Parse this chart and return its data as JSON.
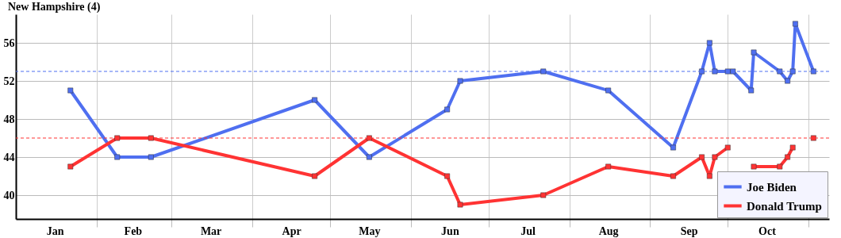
{
  "chart_data": {
    "type": "line",
    "title": "New Hampshire (4)",
    "x": [
      "--01-22",
      "--02-09",
      "--02-22",
      "--04-25",
      "--05-16",
      "--06-15",
      "--06-20",
      "--07-22",
      "--08-16",
      "--09-10",
      "--09-21",
      "--09-24",
      "--09-26",
      "--10-01",
      "--10-03",
      "--10-10",
      "--10-11",
      "--10-21",
      "--10-24",
      "--10-26",
      "--10-27",
      "--11-03"
    ],
    "series": [
      {
        "name": "Joe Biden",
        "color": "#4f6ff0",
        "values": [
          51,
          44,
          44,
          50,
          44,
          49,
          52,
          53,
          51,
          45,
          53,
          56,
          53,
          53,
          53,
          51,
          55,
          53,
          52,
          53,
          58,
          53
        ]
      },
      {
        "name": "Donald Trump",
        "color": "#ff3333",
        "values": [
          43,
          46,
          46,
          42,
          46,
          42,
          39,
          40,
          43,
          42,
          44,
          42,
          44,
          45,
          null,
          null,
          43,
          43,
          44,
          45,
          null,
          46
        ]
      }
    ],
    "xlim": [
      "--01-01",
      "--11-09"
    ],
    "xticks": [
      {
        "value": "--01-16",
        "label": "Jan"
      },
      {
        "value": "--02-01",
        "label": null
      },
      {
        "value": "--02-15",
        "label": "Feb"
      },
      {
        "value": "--03-01",
        "label": null
      },
      {
        "value": "--03-16",
        "label": "Mar"
      },
      {
        "value": "--04-01",
        "label": null
      },
      {
        "value": "--04-16",
        "label": "Apr"
      },
      {
        "value": "--05-01",
        "label": null
      },
      {
        "value": "--05-16",
        "label": "May"
      },
      {
        "value": "--06-01",
        "label": null
      },
      {
        "value": "--06-16",
        "label": "Jun"
      },
      {
        "value": "--07-01",
        "label": null
      },
      {
        "value": "--07-16",
        "label": "Jul"
      },
      {
        "value": "--08-01",
        "label": null
      },
      {
        "value": "--08-16",
        "label": "Aug"
      },
      {
        "value": "--09-01",
        "label": null
      },
      {
        "value": "--09-16",
        "label": "Sep"
      },
      {
        "value": "--10-01",
        "label": null
      },
      {
        "value": "--10-16",
        "label": "Oct"
      },
      {
        "value": "--11-01",
        "label": null
      }
    ],
    "ylim": [
      37.5,
      59
    ],
    "yticks": [
      40,
      44,
      48,
      52,
      56
    ],
    "ref_lines": [
      {
        "axis": "y",
        "value": 53,
        "color": "#4f6ff0",
        "line_style": "dashed"
      },
      {
        "axis": "y",
        "value": 46,
        "color": "#ff3333",
        "line_style": "dashed"
      }
    ],
    "grid": true,
    "legend": "bottom right",
    "marker": "square",
    "line_style": "solid"
  }
}
